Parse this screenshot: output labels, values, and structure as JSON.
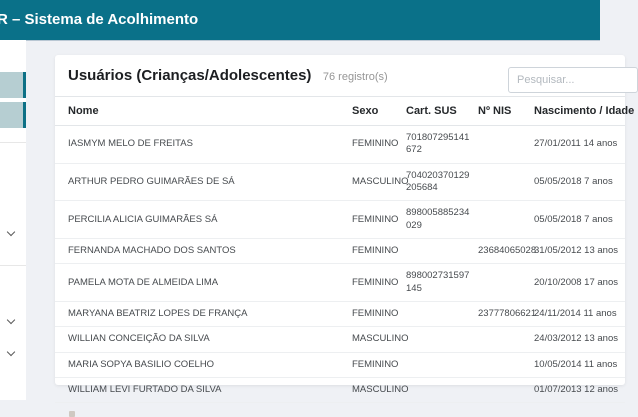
{
  "header": {
    "title": "R – Sistema de Acolhimento"
  },
  "sidebar": {
    "icons": [
      "chevron-down-icon",
      "chevron-down-icon",
      "chevron-down-icon"
    ],
    "active_item_count": 2
  },
  "page": {
    "title": "Usuários (Crianças/Adolescentes)",
    "record_count": "76 registro(s)"
  },
  "search": {
    "placeholder": "Pesquisar..."
  },
  "table": {
    "columns": [
      "Nome",
      "Sexo",
      "Cart. SUS",
      "Nº NIS",
      "Nascimento / Idade"
    ],
    "rows": [
      {
        "nome": "IASMYM MELO DE FREITAS",
        "sexo": "FEMININO",
        "cart_sus": "701807295141672",
        "nis": "",
        "nascimento": "27/01/2011 14 anos"
      },
      {
        "nome": "ARTHUR PEDRO GUIMARÃES DE SÁ",
        "sexo": "MASCULINO",
        "cart_sus": "704020370129205684",
        "nis": "",
        "nascimento": "05/05/2018 7 anos"
      },
      {
        "nome": "PERCILIA ALICIA GUIMARÃES SÁ",
        "sexo": "FEMININO",
        "cart_sus": "898005885234029",
        "nis": "",
        "nascimento": "05/05/2018 7 anos"
      },
      {
        "nome": "FERNANDA MACHADO DOS SANTOS",
        "sexo": "FEMININO",
        "cart_sus": "",
        "nis": "23684065028",
        "nascimento": "31/05/2012 13 anos"
      },
      {
        "nome": "PAMELA MOTA DE ALMEIDA LIMA",
        "sexo": "FEMININO",
        "cart_sus": "898002731597145",
        "nis": "",
        "nascimento": "20/10/2008 17 anos"
      },
      {
        "nome": "MARYANA BEATRIZ LOPES DE FRANÇA",
        "sexo": "FEMININO",
        "cart_sus": "",
        "nis": "23777806621",
        "nascimento": "24/11/2014 11 anos"
      },
      {
        "nome": "WILLIAN CONCEIÇÃO DA SILVA",
        "sexo": "MASCULINO",
        "cart_sus": "",
        "nis": "",
        "nascimento": "24/03/2012 13 anos"
      },
      {
        "nome": "MARIA SOPYA BASILIO COELHO",
        "sexo": "FEMININO",
        "cart_sus": "",
        "nis": "",
        "nascimento": "10/05/2014 11 anos"
      },
      {
        "nome": "WILLIAM LEVI FURTADO DA SILVA",
        "sexo": "MASCULINO",
        "cart_sus": "",
        "nis": "",
        "nascimento": "01/07/2013 12 anos"
      }
    ]
  },
  "colors": {
    "accent": "#0a7189",
    "sidebar_highlight": "#b6ced2",
    "page_background": "#eff1f5"
  }
}
